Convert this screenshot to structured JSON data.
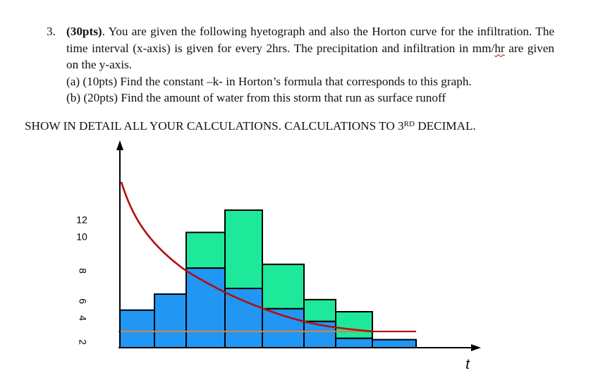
{
  "problem": {
    "number": "3.",
    "points": "(30pts)",
    "intro_rest": ". You are given the following hyetograph and also the Horton curve for the infiltration. The time interval (x-axis) is given for every 2hrs. The precipitation and infiltration in mm/",
    "hr_word": "hr",
    "intro_tail": " are given on the y-axis.",
    "part_a": "(a) (10pts) Find the constant –k- in Horton’s formula that corresponds to this graph.",
    "part_b": "(b) (20pts) Find the amount of water from this storm that run as surface runoff"
  },
  "instruction": {
    "main": "SHOW IN DETAIL ALL YOUR CALCULATIONS. CALCULATIONS TO 3",
    "sup": "RD",
    "end": " DECIMAL."
  },
  "chart_data": {
    "type": "bar",
    "bar_color_infiltrated": "#2196f3",
    "bar_color_runoff": "#1ee89a",
    "curve_color": "#b01010",
    "baseline_color": "#d08050",
    "y_tick_labels": [
      "12",
      "10",
      "8",
      "6",
      "4",
      "2"
    ],
    "x_axis_label": "t",
    "bars_total": [
      4.44,
      6.33,
      13.62,
      16.25,
      9.85,
      5.68,
      4.25,
      0.95
    ],
    "bars_infiltrated": [
      4.44,
      6.33,
      9.4,
      7.0,
      4.6,
      3.1,
      1.1,
      0.95
    ]
  }
}
